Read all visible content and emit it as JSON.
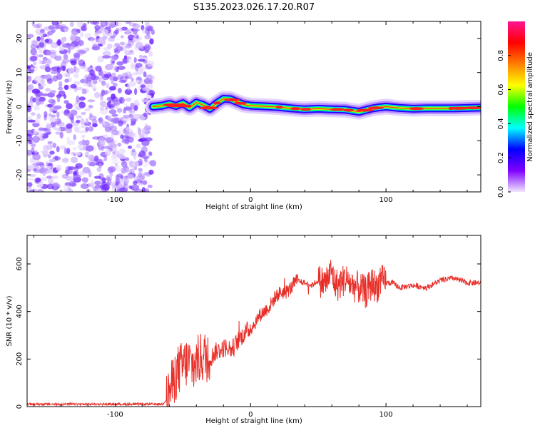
{
  "figure": {
    "title": "S135.2023.026.17.20.R07"
  },
  "chart_data": [
    {
      "type": "heatmap",
      "xlabel": "Height of straight line (km)",
      "ylabel": "Frequency (Hz)",
      "xlim": [
        -165,
        170
      ],
      "ylim": [
        -25,
        25
      ],
      "xticks": [
        -100,
        0,
        100
      ],
      "yticks": [
        -20,
        -10,
        0,
        10,
        20
      ],
      "noise_region_x": [
        -165,
        -72
      ],
      "ridge_profile": {
        "x": [
          -72,
          -65,
          -60,
          -55,
          -50,
          -45,
          -40,
          -35,
          -30,
          -25,
          -20,
          -15,
          -10,
          -5,
          0,
          10,
          20,
          30,
          40,
          50,
          60,
          70,
          75,
          80,
          85,
          90,
          95,
          100,
          110,
          120,
          130,
          140,
          150,
          160,
          170
        ],
        "frequency": [
          0,
          0.3,
          0.8,
          0.2,
          1.0,
          -0.3,
          1.2,
          0.5,
          -0.6,
          1.0,
          2.3,
          2.2,
          1.4,
          0.6,
          0.3,
          0.1,
          -0.1,
          -0.5,
          -0.8,
          -0.6,
          -0.8,
          -0.9,
          -1.2,
          -1.5,
          -1.0,
          -0.5,
          -0.2,
          0.0,
          -0.4,
          -0.6,
          -0.5,
          -0.5,
          -0.5,
          -0.4,
          -0.3
        ]
      },
      "colorbar": {
        "label": "Normalized spectral amplitude",
        "range": [
          0,
          1
        ],
        "ticks": [
          "0.0",
          "0.2",
          "0.4",
          "0.6",
          "0.8"
        ],
        "colors": [
          "#f0e6ff",
          "#7f00ff",
          "#0000ff",
          "#00ffff",
          "#00ff00",
          "#ffff00",
          "#ff7f00",
          "#ff0000",
          "#ff1493"
        ]
      }
    },
    {
      "type": "line",
      "xlabel": "Height of straight line (km)",
      "ylabel": "SNR (10 * v/v)",
      "xlim": [
        -165,
        170
      ],
      "ylim": [
        0,
        720
      ],
      "xticks": [
        -100,
        0,
        100
      ],
      "yticks": [
        0,
        200,
        400,
        600
      ],
      "color": "#e8302a",
      "series": [
        {
          "x": [
            -165,
            -140,
            -110,
            -80,
            -65,
            -62,
            -58,
            -54,
            -50,
            -46,
            -42,
            -38,
            -34,
            -30,
            -26,
            -22,
            -18,
            -14,
            -10,
            -6,
            -2,
            2,
            6,
            10,
            14,
            18,
            22,
            26,
            30,
            34,
            40,
            45,
            50,
            55,
            58,
            60,
            62,
            65,
            70,
            75,
            80,
            85,
            90,
            93,
            96,
            100,
            105,
            110,
            120,
            130,
            140,
            150,
            160,
            170
          ],
          "values": [
            10,
            10,
            10,
            10,
            10,
            30,
            90,
            150,
            170,
            190,
            170,
            200,
            210,
            200,
            230,
            240,
            250,
            240,
            270,
            300,
            320,
            340,
            380,
            400,
            420,
            460,
            480,
            480,
            500,
            530,
            520,
            510,
            530,
            520,
            550,
            570,
            520,
            510,
            540,
            510,
            500,
            480,
            520,
            500,
            530,
            520,
            520,
            500,
            510,
            500,
            530,
            540,
            520,
            520
          ]
        }
      ]
    }
  ]
}
